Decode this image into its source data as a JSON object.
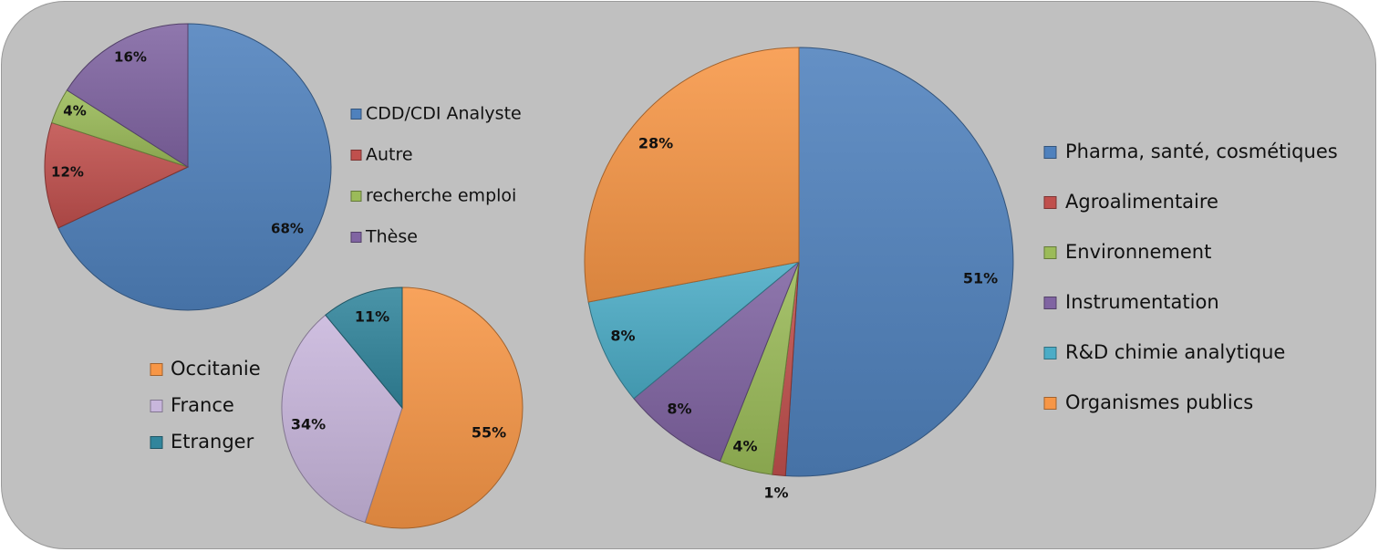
{
  "chart_data": [
    {
      "type": "pie",
      "start_angle_deg": 0,
      "direction": "clockwise",
      "legend": "right",
      "slices": [
        {
          "label": "CDD/CDI Analyste",
          "value": 68,
          "label_text": "68%",
          "color": "#4f81bd"
        },
        {
          "label": "Autre",
          "value": 12,
          "label_text": "12%",
          "color": "#c0504d"
        },
        {
          "label": "recherche emploi",
          "value": 4,
          "label_text": "4%",
          "color": "#9bbb59"
        },
        {
          "label": "Thèse",
          "value": 16,
          "label_text": "16%",
          "color": "#8064a2"
        }
      ]
    },
    {
      "type": "pie",
      "start_angle_deg": 0,
      "direction": "clockwise",
      "legend": "left",
      "slices": [
        {
          "label": "Occitanie",
          "value": 55,
          "label_text": "55%",
          "color": "#f79646"
        },
        {
          "label": "France",
          "value": 34,
          "label_text": "34%",
          "color": "#c8b6dc"
        },
        {
          "label": "Etranger",
          "value": 11,
          "label_text": "11%",
          "color": "#31859c"
        }
      ]
    },
    {
      "type": "pie",
      "start_angle_deg": 0,
      "direction": "clockwise",
      "legend": "right",
      "slices": [
        {
          "label": "Pharma, santé, cosmétiques",
          "value": 51,
          "label_text": "51%",
          "color": "#4f81bd"
        },
        {
          "label": "Agroalimentaire",
          "value": 1,
          "label_text": "1%",
          "color": "#c0504d"
        },
        {
          "label": "Environnement",
          "value": 4,
          "label_text": "4%",
          "color": "#9bbb59"
        },
        {
          "label": "Instrumentation",
          "value": 8,
          "label_text": "8%",
          "color": "#8064a2"
        },
        {
          "label": "R&D chimie analytique",
          "value": 8,
          "label_text": "8%",
          "color": "#4bacc6"
        },
        {
          "label": "Organismes publics",
          "value": 28,
          "label_text": "28%",
          "color": "#f79646"
        }
      ]
    }
  ]
}
